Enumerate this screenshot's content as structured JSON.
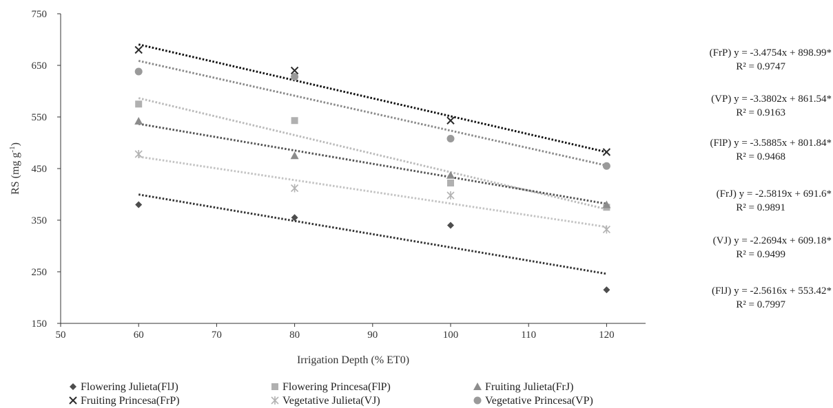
{
  "chart_data": {
    "type": "scatter",
    "xlabel": "Irrigation Depth (% ET0)",
    "ylabel_main": "RS (mg g",
    "ylabel_sup": "-1",
    "ylabel_close": ")",
    "xlim": [
      50,
      125
    ],
    "ylim": [
      150,
      750
    ],
    "xticks": [
      50,
      60,
      70,
      80,
      90,
      100,
      110,
      120
    ],
    "yticks": [
      150,
      250,
      350,
      450,
      550,
      650,
      750
    ],
    "x": [
      60,
      80,
      100,
      120
    ],
    "legend_position": "bottom",
    "series": [
      {
        "name": "Flowering Julieta(FlJ)",
        "marker": "diamond",
        "color": "#4d4d4d",
        "values": [
          380,
          355,
          340,
          215
        ],
        "trend": {
          "slope": -2.5616,
          "intercept": 553.42
        }
      },
      {
        "name": "Flowering Princesa(FlP)",
        "marker": "square",
        "color": "#b0b0b0",
        "values": [
          575,
          543,
          422,
          375
        ],
        "trend": {
          "slope": -3.5885,
          "intercept": 801.84
        }
      },
      {
        "name": "Fruiting Julieta(FrJ)",
        "marker": "triangle",
        "color": "#8c8c8c",
        "values": [
          542,
          475,
          437,
          380
        ],
        "trend": {
          "slope": -2.5819,
          "intercept": 691.6
        }
      },
      {
        "name": "Fruiting Princesa(FrP)",
        "marker": "x",
        "color": "#2b2b2b",
        "values": [
          680,
          640,
          543,
          482
        ],
        "trend": {
          "slope": -3.4754,
          "intercept": 898.99
        }
      },
      {
        "name": "Vegetative Julieta(VJ)",
        "marker": "star",
        "color": "#b3b3b3",
        "values": [
          478,
          412,
          398,
          332
        ],
        "trend": {
          "slope": -2.2694,
          "intercept": 609.18
        }
      },
      {
        "name": "Vegetative Princesa(VP)",
        "marker": "circle",
        "color": "#9a9a9a",
        "values": [
          638,
          628,
          508,
          455
        ],
        "trend": {
          "slope": -3.3802,
          "intercept": 861.54
        }
      }
    ],
    "equations": [
      {
        "eq": "(FrP) y = -3.4754x + 898.99*",
        "r2": "R² = 0.9747"
      },
      {
        "eq": "(VP) y = -3.3802x + 861.54*",
        "r2": "R² = 0.9163"
      },
      {
        "eq": "(FlP) y = -3.5885x + 801.84*",
        "r2": "R² = 0.9468"
      },
      {
        "eq": "(FrJ) y = -2.5819x + 691.6*",
        "r2": "R² = 0.9891"
      },
      {
        "eq": "(VJ) y = -2.2694x + 609.18*",
        "r2": "R² = 0.9499"
      },
      {
        "eq": "(FlJ) y = -2.5616x + 553.42*",
        "r2": "R² = 0.7997"
      }
    ]
  }
}
